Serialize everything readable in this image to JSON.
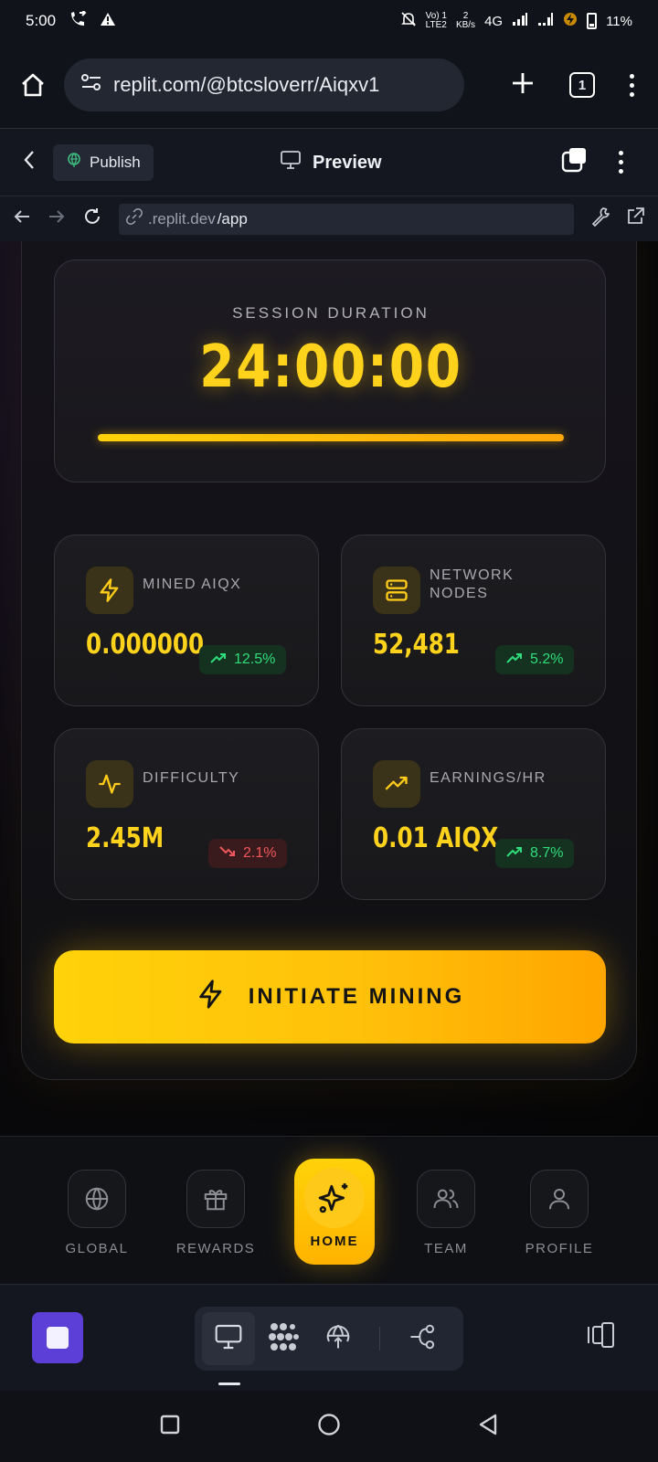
{
  "status_bar": {
    "time": "5:00",
    "network_top": "Vo) 1",
    "network_bottom": "LTE2",
    "speed_top": "2",
    "speed_bottom": "KB/s",
    "signal_type": "4G",
    "battery": "11%"
  },
  "browser": {
    "url": "replit.com/@btcsloverr/Aiqxv1",
    "tab_count": "1"
  },
  "replit_header": {
    "publish_label": "Publish",
    "preview_label": "Preview"
  },
  "webview": {
    "url_domain": ".replit.dev",
    "url_path": "/app"
  },
  "session": {
    "label": "SESSION DURATION",
    "time": "24:00:00",
    "progress": 1.0
  },
  "stats": [
    {
      "label": "MINED AIQX",
      "value": "0.000000",
      "change": "12.5%",
      "trend": "up",
      "icon": "zap-icon"
    },
    {
      "label": "NETWORK NODES",
      "value": "52,481",
      "change": "5.2%",
      "trend": "up",
      "icon": "server-icon"
    },
    {
      "label": "DIFFICULTY",
      "value": "2.45M",
      "change": "2.1%",
      "trend": "down",
      "icon": "activity-icon"
    },
    {
      "label": "EARNINGS/HR",
      "value": "0.01 AIQX",
      "change": "8.7%",
      "trend": "up",
      "icon": "trending-up-icon"
    }
  ],
  "mine_button": {
    "label": "INITIATE MINING"
  },
  "nav": {
    "global": "GLOBAL",
    "rewards": "REWARDS",
    "home": "HOME",
    "team": "TEAM",
    "profile": "PROFILE"
  },
  "colors": {
    "accent": "#ffd21c",
    "accent_orange": "#ffa500",
    "positive": "#2fdd7a",
    "negative": "#f0575b",
    "stop_button": "#5b3fd6"
  }
}
